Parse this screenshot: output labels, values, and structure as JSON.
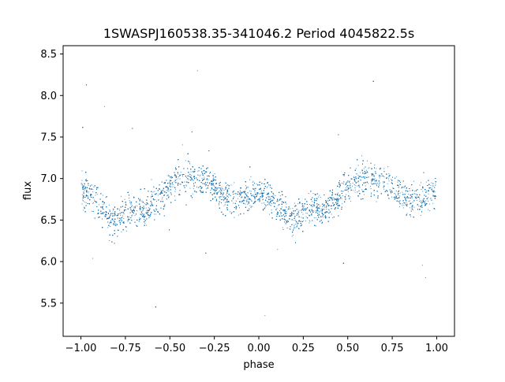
{
  "chart_data": {
    "type": "scatter",
    "title": "1SWASPJ160538.35-341046.2 Period 4045822.5s",
    "xlabel": "phase",
    "ylabel": "flux",
    "xlim": [
      -1.1,
      1.1
    ],
    "ylim": [
      5.1,
      8.6
    ],
    "x_ticks": [
      -1.0,
      -0.75,
      -0.5,
      -0.25,
      0.0,
      0.25,
      0.5,
      0.75,
      1.0
    ],
    "x_tick_labels": [
      "−1.00",
      "−0.75",
      "−0.50",
      "−0.25",
      "0.00",
      "0.25",
      "0.50",
      "0.75",
      "1.00"
    ],
    "y_ticks": [
      5.5,
      6.0,
      6.5,
      7.0,
      7.5,
      8.0,
      8.5
    ],
    "y_tick_labels": [
      "5.5",
      "6.0",
      "6.5",
      "7.0",
      "7.5",
      "8.0",
      "8.5"
    ],
    "grid": false,
    "series": [
      {
        "color": "#1f77b4",
        "marker_size": 1,
        "profile": {
          "phase": [
            0.0,
            0.05,
            0.1,
            0.15,
            0.2,
            0.25,
            0.3,
            0.35,
            0.4,
            0.45,
            0.5,
            0.55,
            0.6,
            0.65,
            0.7,
            0.75,
            0.8,
            0.85,
            0.9,
            0.95,
            1.0
          ],
          "median_flux": [
            6.85,
            6.8,
            6.7,
            6.55,
            6.5,
            6.6,
            6.65,
            6.6,
            6.7,
            6.8,
            6.9,
            7.0,
            7.05,
            6.95,
            7.0,
            6.9,
            6.8,
            6.75,
            6.75,
            6.8,
            6.85
          ],
          "spread": [
            0.3,
            0.3,
            0.3,
            0.3,
            0.35,
            0.3,
            0.3,
            0.3,
            0.3,
            0.3,
            0.35,
            0.35,
            0.35,
            0.3,
            0.3,
            0.3,
            0.3,
            0.3,
            0.3,
            0.3,
            0.3
          ]
        },
        "point_count": 9000
      }
    ]
  }
}
